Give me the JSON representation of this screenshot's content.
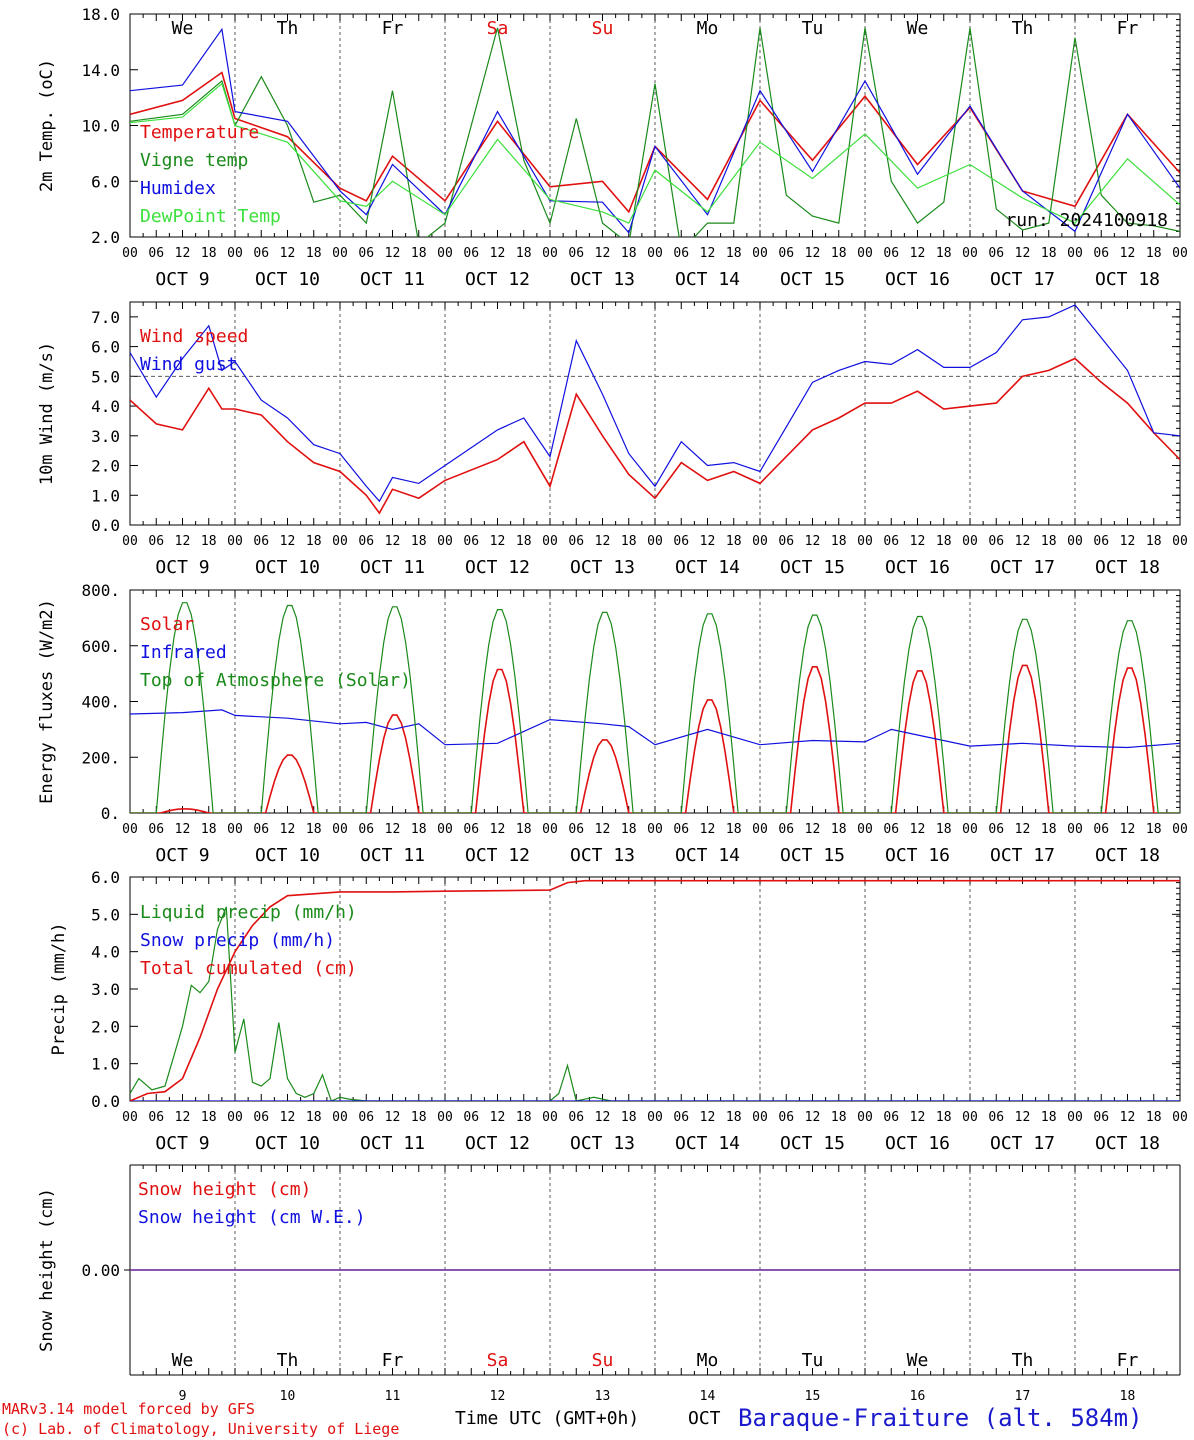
{
  "colors": {
    "red": "#e01010",
    "green": "#1a8a1a",
    "blue": "#1010e0",
    "lightgreen": "#3ce03c",
    "dark_green": "#1a7a1a",
    "purple": "#7030a0",
    "weekend": "#e01010"
  },
  "days": [
    "We",
    "Th",
    "Fr",
    "Sa",
    "Su",
    "Mo",
    "Tu",
    "We",
    "Th",
    "Fr"
  ],
  "weekend_days": [
    "Sa",
    "Su"
  ],
  "dates": [
    "OCT  9",
    "OCT 10",
    "OCT 11",
    "OCT 12",
    "OCT 13",
    "OCT 14",
    "OCT 15",
    "OCT 16",
    "OCT 17",
    "OCT 18"
  ],
  "day_numbers": [
    "9",
    "10",
    "11",
    "12",
    "13",
    "14",
    "15",
    "16",
    "17",
    "18"
  ],
  "hour_ticks": [
    "00",
    "06",
    "12",
    "18"
  ],
  "footer": {
    "model": "MARv3.14 model forced by GFS",
    "lab": "(c) Lab. of Climatology, University of Liege",
    "time_label": "Time UTC (GMT+0h)",
    "month": "OCT",
    "station": "Baraque-Fraiture (alt. 584m)"
  },
  "chart_data": [
    {
      "type": "line",
      "ylabel": "2m Temp. (oC)",
      "ylim": [
        2.0,
        18.0
      ],
      "yticks": [
        "2.0",
        "6.0",
        "10.0",
        "14.0",
        "18.0"
      ],
      "annotation": "run: 2024100918",
      "x_unit": "hours from Oct 9 00 UTC",
      "series": [
        {
          "name": "Temperature",
          "color": "red",
          "x": [
            0,
            12,
            21,
            24,
            36,
            48,
            54,
            60,
            72,
            84,
            96,
            108,
            114,
            120,
            132,
            144,
            156,
            168,
            180,
            192,
            204,
            216,
            228,
            240
          ],
          "values": [
            10.8,
            11.8,
            13.8,
            10.5,
            9.2,
            5.5,
            4.6,
            7.8,
            4.6,
            10.3,
            5.6,
            6.0,
            3.8,
            8.5,
            4.7,
            11.8,
            7.5,
            12.1,
            7.2,
            11.3,
            5.3,
            4.2,
            10.8,
            6.6
          ]
        },
        {
          "name": "Vigne temp",
          "color": "green",
          "x": [
            0,
            12,
            21,
            24,
            30,
            36,
            42,
            48,
            54,
            60,
            66,
            72,
            84,
            90,
            96,
            102,
            108,
            114,
            120,
            126,
            132,
            138,
            144,
            150,
            156,
            162,
            168,
            174,
            180,
            186,
            192,
            198,
            204,
            210,
            216,
            222,
            228,
            234,
            240
          ],
          "values": [
            10.3,
            10.8,
            13.2,
            10.0,
            13.5,
            10.0,
            4.5,
            5.0,
            3.0,
            12.5,
            1.5,
            3.0,
            17.0,
            7.5,
            3.0,
            10.5,
            3.0,
            1.5,
            13.0,
            1.0,
            3.0,
            3.0,
            17.0,
            5.0,
            3.5,
            3.0,
            17.0,
            6.0,
            3.0,
            4.5,
            17.0,
            4.0,
            2.5,
            3.0,
            16.3,
            5.0,
            3.0,
            2.8,
            2.4
          ]
        },
        {
          "name": "Humidex",
          "color": "blue",
          "x": [
            0,
            12,
            21,
            24,
            36,
            48,
            54,
            60,
            72,
            84,
            96,
            108,
            114,
            120,
            132,
            144,
            156,
            168,
            180,
            192,
            204,
            216,
            228,
            240
          ],
          "values": [
            12.5,
            12.9,
            16.9,
            11.0,
            10.3,
            5.3,
            3.6,
            7.2,
            3.6,
            11.0,
            4.6,
            4.5,
            2.3,
            8.5,
            3.6,
            12.5,
            6.7,
            13.2,
            6.5,
            11.4,
            5.3,
            2.4,
            10.8,
            5.5
          ]
        },
        {
          "name": "DewPoint Temp",
          "color": "lightgreen",
          "x": [
            0,
            12,
            21,
            24,
            36,
            48,
            54,
            60,
            72,
            84,
            96,
            108,
            114,
            120,
            132,
            144,
            156,
            168,
            180,
            192,
            204,
            216,
            228,
            240
          ],
          "values": [
            10.2,
            10.6,
            13.0,
            10.0,
            8.8,
            4.6,
            4.2,
            6.0,
            3.6,
            9.0,
            4.7,
            3.8,
            3.0,
            6.8,
            3.8,
            8.8,
            6.2,
            9.4,
            5.5,
            7.2,
            4.8,
            3.0,
            7.6,
            4.3
          ]
        }
      ]
    },
    {
      "type": "line",
      "ylabel": "10m Wind (m/s)",
      "ylim": [
        0.0,
        7.5
      ],
      "yticks": [
        "0.0",
        "1.0",
        "2.0",
        "3.0",
        "4.0",
        "5.0",
        "6.0",
        "7.0"
      ],
      "reference_line": 5.0,
      "x_unit": "hours from Oct 9 00 UTC",
      "series": [
        {
          "name": "Wind speed",
          "color": "red",
          "x": [
            0,
            6,
            12,
            18,
            21,
            24,
            30,
            36,
            42,
            48,
            54,
            57,
            60,
            66,
            72,
            84,
            90,
            96,
            102,
            108,
            114,
            120,
            126,
            132,
            138,
            144,
            150,
            156,
            162,
            168,
            174,
            180,
            186,
            192,
            198,
            204,
            210,
            216,
            222,
            228,
            234,
            240
          ],
          "values": [
            4.2,
            3.4,
            3.2,
            4.6,
            3.9,
            3.9,
            3.7,
            2.8,
            2.1,
            1.8,
            1.0,
            0.4,
            1.2,
            0.9,
            1.5,
            2.2,
            2.8,
            1.3,
            4.4,
            3.0,
            1.7,
            0.9,
            2.1,
            1.5,
            1.8,
            1.4,
            2.3,
            3.2,
            3.6,
            4.1,
            4.1,
            4.5,
            3.9,
            4.0,
            4.1,
            5.0,
            5.2,
            5.6,
            4.8,
            4.1,
            3.1,
            2.2
          ]
        },
        {
          "name": "Wind gust",
          "color": "blue",
          "x": [
            0,
            6,
            12,
            18,
            21,
            24,
            30,
            36,
            42,
            48,
            54,
            57,
            60,
            66,
            72,
            84,
            90,
            96,
            102,
            108,
            114,
            120,
            126,
            132,
            138,
            144,
            150,
            156,
            162,
            168,
            174,
            180,
            186,
            192,
            198,
            204,
            210,
            216,
            222,
            228,
            234,
            240
          ],
          "values": [
            5.8,
            4.3,
            5.6,
            6.7,
            5.2,
            5.5,
            4.2,
            3.6,
            2.7,
            2.4,
            1.3,
            0.8,
            1.6,
            1.4,
            2.0,
            3.2,
            3.6,
            2.3,
            6.2,
            4.4,
            2.4,
            1.3,
            2.8,
            2.0,
            2.1,
            1.8,
            3.3,
            4.8,
            5.2,
            5.5,
            5.4,
            5.9,
            5.3,
            5.3,
            5.8,
            6.9,
            7.0,
            7.4,
            6.3,
            5.2,
            3.1,
            3.0
          ]
        }
      ]
    },
    {
      "type": "line",
      "ylabel": "Energy fluxes (W/m2)",
      "ylim": [
        0,
        800
      ],
      "yticks": [
        "0.",
        "200.",
        "400.",
        "600.",
        "800."
      ],
      "x_unit": "hours from Oct 9 00 UTC",
      "series": [
        {
          "name": "Solar",
          "color": "red",
          "peaks": [
            15,
            210,
            355,
            520,
            265,
            410,
            530,
            515,
            535,
            525
          ]
        },
        {
          "name": "Infrared",
          "color": "blue",
          "x": [
            0,
            12,
            21,
            24,
            36,
            48,
            54,
            60,
            66,
            72,
            84,
            96,
            108,
            114,
            120,
            132,
            144,
            156,
            168,
            174,
            180,
            192,
            204,
            216,
            228,
            240
          ],
          "values": [
            355,
            360,
            370,
            350,
            340,
            320,
            325,
            300,
            320,
            245,
            250,
            335,
            320,
            310,
            245,
            300,
            245,
            260,
            255,
            300,
            280,
            240,
            250,
            240,
            235,
            250
          ]
        },
        {
          "name": "Top of Atmosphere (Solar)",
          "color": "green",
          "peaks": [
            760,
            750,
            745,
            735,
            725,
            720,
            715,
            710,
            700,
            695
          ]
        }
      ]
    },
    {
      "type": "line",
      "ylabel": "Precip (mm/h)",
      "ylim": [
        0.0,
        6.0
      ],
      "yticks": [
        "0.0",
        "1.0",
        "2.0",
        "3.0",
        "4.0",
        "5.0",
        "6.0"
      ],
      "x_unit": "hours from Oct 9 00 UTC",
      "series": [
        {
          "name": "Liquid precip (mm/h)",
          "color": "green",
          "x": [
            0,
            2,
            5,
            8,
            10,
            12,
            14,
            16,
            18,
            20,
            22,
            24,
            26,
            28,
            30,
            32,
            34,
            36,
            38,
            40,
            42,
            44,
            46,
            48,
            50,
            54,
            60,
            96,
            98,
            100,
            102,
            104,
            106,
            110,
            112,
            120,
            240
          ],
          "values": [
            0.2,
            0.6,
            0.3,
            0.4,
            1.2,
            2.0,
            3.1,
            2.9,
            3.2,
            4.6,
            5.2,
            1.3,
            2.2,
            0.5,
            0.4,
            0.6,
            2.1,
            0.6,
            0.2,
            0.1,
            0.2,
            0.7,
            0.0,
            0.1,
            0.05,
            0.0,
            0.0,
            0.0,
            0.2,
            0.95,
            0.0,
            0.05,
            0.1,
            0.0,
            0.0,
            0.0,
            0.0
          ]
        },
        {
          "name": "Snow precip (mm/h)",
          "color": "blue",
          "x": [
            0,
            240
          ],
          "values": [
            0.0,
            0.0
          ]
        },
        {
          "name": "Total cumulated (cm)",
          "color": "red",
          "x": [
            0,
            4,
            8,
            12,
            16,
            20,
            24,
            28,
            32,
            36,
            42,
            48,
            60,
            72,
            96,
            100,
            104,
            108,
            120,
            240
          ],
          "values": [
            0.0,
            0.2,
            0.25,
            0.6,
            1.7,
            3.0,
            4.0,
            4.7,
            5.2,
            5.5,
            5.55,
            5.6,
            5.6,
            5.62,
            5.65,
            5.85,
            5.9,
            5.9,
            5.9,
            5.9
          ]
        }
      ]
    },
    {
      "type": "line",
      "ylabel": "Snow height (cm)",
      "ytick": "0.00",
      "x_unit": "hours from Oct 9 00 UTC",
      "series": [
        {
          "name": "Snow height (cm)",
          "color": "red",
          "x": [
            0,
            240
          ],
          "values": [
            0,
            0
          ]
        },
        {
          "name": "Snow height (cm W.E.)",
          "color": "blue",
          "x": [
            0,
            240
          ],
          "values": [
            0,
            0
          ]
        }
      ]
    }
  ]
}
